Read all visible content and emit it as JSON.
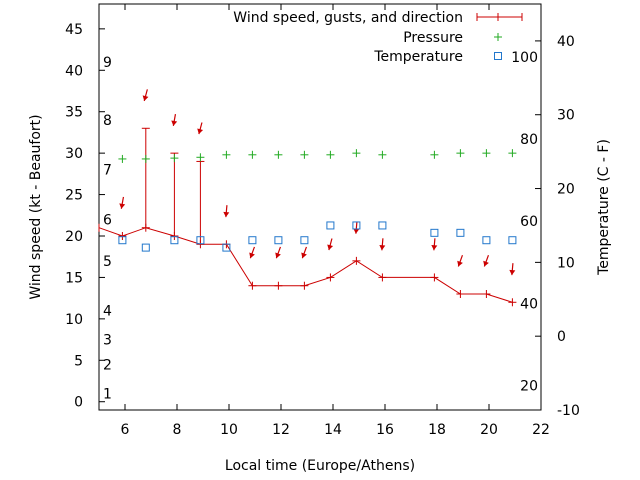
{
  "chart_data": {
    "type": "line",
    "xlabel": "Local time (Europe/Athens)",
    "ylabel_left": "Wind speed (kt - Beaufort)",
    "ylabel_right": "Temperature (C - F)",
    "xlim": [
      5,
      22
    ],
    "ylim_left": [
      -1,
      48
    ],
    "ylim_right": [
      -10,
      45
    ],
    "x_ticks": [
      6,
      8,
      10,
      12,
      14,
      16,
      18,
      20,
      22
    ],
    "y_left_ticks": [
      0,
      5,
      10,
      15,
      20,
      25,
      30,
      35,
      40,
      45
    ],
    "y_right_ticks": [
      -10,
      0,
      10,
      20,
      30,
      40
    ],
    "beaufort_labels": [
      {
        "label": "1",
        "speed": 1
      },
      {
        "label": "2",
        "speed": 4.5
      },
      {
        "label": "3",
        "speed": 7.5
      },
      {
        "label": "4",
        "speed": 11
      },
      {
        "label": "5",
        "speed": 17
      },
      {
        "label": "6",
        "speed": 22
      },
      {
        "label": "7",
        "speed": 28
      },
      {
        "label": "8",
        "speed": 34
      },
      {
        "label": "9",
        "speed": 41
      }
    ],
    "fahrenheit_labels": [
      {
        "label": "20",
        "celsius": -6.7
      },
      {
        "label": "40",
        "celsius": 4.4
      },
      {
        "label": "60",
        "celsius": 15.6
      },
      {
        "label": "80",
        "celsius": 26.7
      },
      {
        "label": "100",
        "celsius": 37.8
      }
    ],
    "legend": [
      {
        "label": "Wind speed, gusts, and direction",
        "color": "#cc0000"
      },
      {
        "label": "Pressure",
        "color": "#22aa22"
      },
      {
        "label": "Temperature",
        "color": "#2277cc"
      }
    ],
    "legend_position": "top-right",
    "wind": {
      "x": [
        5,
        5.9,
        6.8,
        7.9,
        8.9,
        9.9,
        10.9,
        11.9,
        12.9,
        13.9,
        14.9,
        15.9,
        17.9,
        18.9,
        19.9,
        20.9
      ],
      "speed": [
        21,
        20,
        21,
        20,
        19,
        19,
        14,
        14,
        14,
        15,
        17,
        15,
        15,
        13,
        13,
        12
      ],
      "gust": [
        null,
        null,
        33,
        30,
        29,
        null,
        null,
        null,
        null,
        null,
        null,
        null,
        null,
        null,
        null,
        null
      ]
    },
    "direction_arrows": {
      "x": [
        5.9,
        6.8,
        7.9,
        8.9,
        9.9,
        10.9,
        11.9,
        12.9,
        13.9,
        14.9,
        15.9,
        17.9,
        18.9,
        19.9,
        20.9
      ],
      "speed": [
        24,
        37,
        34,
        33,
        23,
        18,
        18,
        18,
        19,
        21,
        19,
        19,
        17,
        17,
        16
      ],
      "angle": [
        10,
        15,
        10,
        15,
        5,
        20,
        20,
        20,
        15,
        5,
        5,
        5,
        20,
        20,
        5
      ]
    },
    "pressure": {
      "x": [
        5.9,
        6.8,
        7.9,
        8.9,
        9.9,
        10.9,
        11.9,
        12.9,
        13.9,
        14.9,
        15.9,
        17.9,
        18.9,
        19.9,
        20.9
      ],
      "speed": [
        29.3,
        29.3,
        29.4,
        29.5,
        29.8,
        29.8,
        29.8,
        29.8,
        29.8,
        30,
        29.8,
        29.8,
        30,
        30,
        30
      ]
    },
    "temperature": {
      "x": [
        5.9,
        6.8,
        7.9,
        8.9,
        9.9,
        10.9,
        11.9,
        12.9,
        13.9,
        14.9,
        15.9,
        17.9,
        18.9,
        19.9,
        20.9
      ],
      "celsius": [
        13,
        12,
        13,
        13,
        12,
        13,
        13,
        13,
        15,
        15,
        15,
        14,
        14,
        13,
        13
      ]
    }
  }
}
